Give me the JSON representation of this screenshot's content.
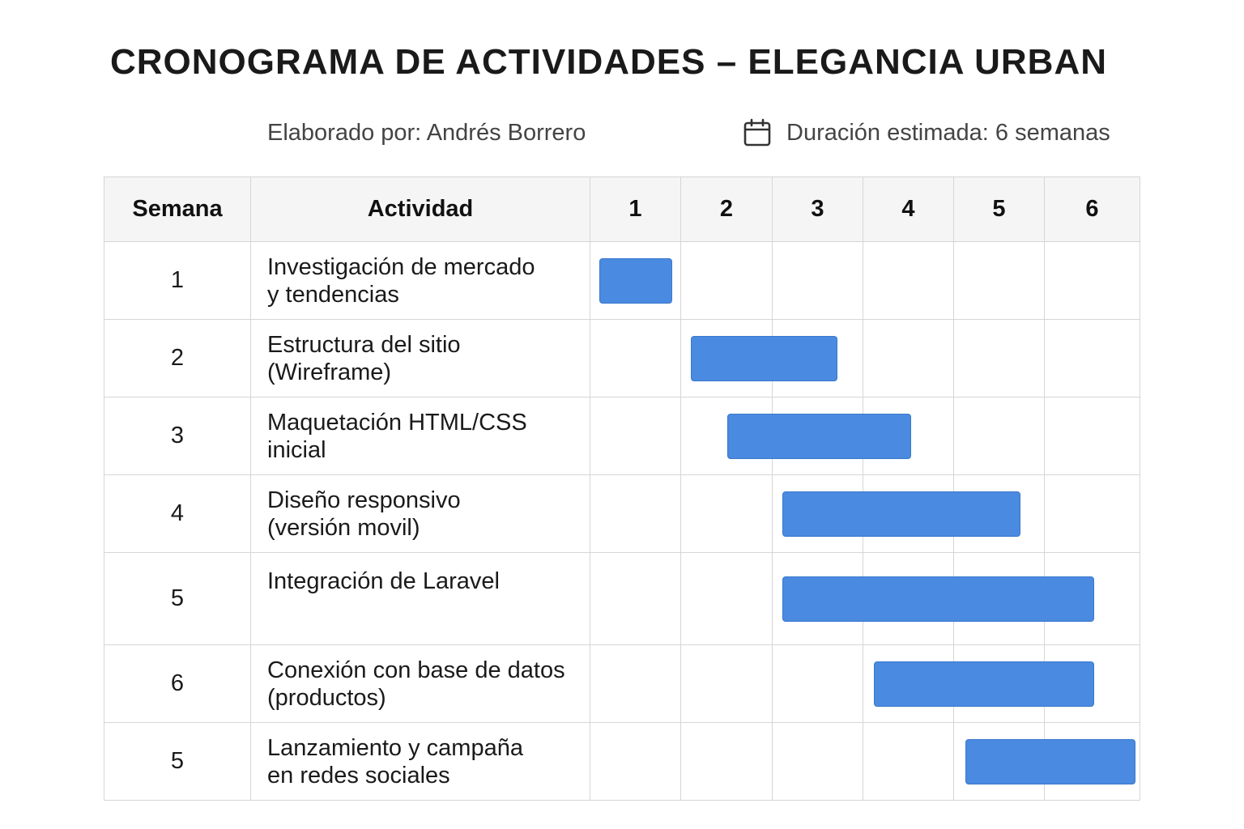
{
  "title": "CRONOGRAMA DE ACTIVIDADES – ELEGANCIA URBAN",
  "author_text": "Elaborado por: Andrés Borrero",
  "duration_text": "Duración estimada: 6 semanas",
  "duration_icon": "calendar-icon",
  "accent_color": "#4a8ae0",
  "chart_data": {
    "type": "gantt",
    "columns": {
      "semana": "Semana",
      "actividad": "Actividad",
      "weeks": [
        "1",
        "2",
        "3",
        "4",
        "5",
        "6"
      ]
    },
    "rows": [
      {
        "semana": "1",
        "actividad_lines": [
          "Investigación de mercado",
          "y tendencias"
        ],
        "start": 0.1,
        "end": 0.9
      },
      {
        "semana": "2",
        "actividad_lines": [
          "Estructura del sitio",
          "(Wireframe)"
        ],
        "start": 1.1,
        "end": 2.7
      },
      {
        "semana": "3",
        "actividad_lines": [
          "Maquetación HTML/CSS",
          "inicial"
        ],
        "start": 1.5,
        "end": 3.5
      },
      {
        "semana": "4",
        "actividad_lines": [
          "Diseño responsivo",
          "(versión movil)"
        ],
        "start": 2.1,
        "end": 4.7
      },
      {
        "semana": "5",
        "actividad_lines": [
          "Integración de Laravel"
        ],
        "start": 2.1,
        "end": 5.5
      },
      {
        "semana": "6",
        "actividad_lines": [
          "Conexión con base de datos",
          "(productos)"
        ],
        "start": 3.1,
        "end": 5.5
      },
      {
        "semana": "5",
        "actividad_lines": [
          "Lanzamiento y campaña",
          "en redes sociales"
        ],
        "start": 4.1,
        "end": 5.95
      }
    ]
  }
}
